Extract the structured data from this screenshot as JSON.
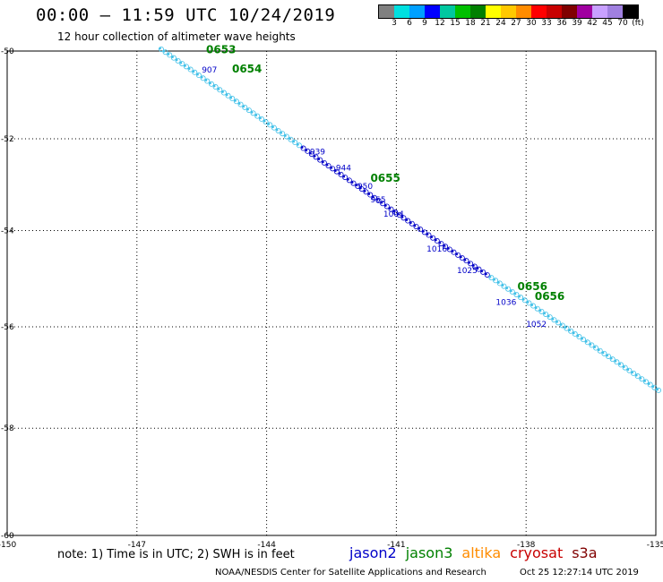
{
  "header": {
    "title": "00:00 – 11:59 UTC 10/24/2019",
    "subtitle": "12 hour collection of altimeter wave heights"
  },
  "colorbar": {
    "colors": [
      "#808080",
      "#00e0e0",
      "#00a0ff",
      "#0000ff",
      "#00c8a0",
      "#00c000",
      "#008000",
      "#ffff00",
      "#ffc800",
      "#ff8c00",
      "#ff0000",
      "#c80000",
      "#800000",
      "#a000a0",
      "#c8a0ff",
      "#a080e0",
      "#000000"
    ],
    "labels": [
      "3",
      "6",
      "9",
      "12",
      "15",
      "18",
      "21",
      "24",
      "27",
      "30",
      "33",
      "36",
      "39",
      "42",
      "45",
      "70",
      "(ft)"
    ]
  },
  "map": {
    "lon_range": [
      -150,
      -135
    ],
    "lat_range": [
      -60,
      -49.5
    ],
    "lon_ticks": [
      "-150",
      "-147",
      "-144",
      "-141",
      "-138",
      "-135"
    ],
    "lat_ticks": [
      "-50",
      "-52",
      "-54",
      "-56",
      "-58",
      "-60"
    ],
    "track_cyan_color": "#40c0e8",
    "track_blue_color": "#0000c8",
    "pass_label_color": "#008000",
    "pass_labels": [
      {
        "text": "0653",
        "lon": -145.4,
        "lat": -50.05
      },
      {
        "text": "0654",
        "lon": -144.8,
        "lat": -50.5
      },
      {
        "text": "0655",
        "lon": -141.6,
        "lat": -52.95
      },
      {
        "text": "0656",
        "lon": -138.2,
        "lat": -55.25
      },
      {
        "text": "0656",
        "lon": -137.8,
        "lat": -55.45
      }
    ],
    "time_labels": [
      {
        "text": "907",
        "lon": -145.5,
        "lat": -50.5
      },
      {
        "text": "939",
        "lon": -143.0,
        "lat": -52.35
      },
      {
        "text": "944",
        "lon": -142.4,
        "lat": -52.7
      },
      {
        "text": "950",
        "lon": -141.9,
        "lat": -53.1
      },
      {
        "text": "955",
        "lon": -141.6,
        "lat": -53.4
      },
      {
        "text": "1004",
        "lon": -141.3,
        "lat": -53.7
      },
      {
        "text": "1016",
        "lon": -140.3,
        "lat": -54.45
      },
      {
        "text": "1025",
        "lon": -139.6,
        "lat": -54.9
      },
      {
        "text": "1036",
        "lon": -138.7,
        "lat": -55.55
      },
      {
        "text": "1052",
        "lon": -138.0,
        "lat": -56.0
      }
    ]
  },
  "footer": {
    "note": "note: 1) Time is in UTC; 2) SWH is in feet",
    "missions": [
      {
        "name": "jason2",
        "color": "#0000c8"
      },
      {
        "name": "jason3",
        "color": "#008000"
      },
      {
        "name": "altika",
        "color": "#ff8c00"
      },
      {
        "name": "cryosat",
        "color": "#c80000"
      },
      {
        "name": "s3a",
        "color": "#800000"
      }
    ],
    "credit": "NOAA/NESDIS Center for Satellite Applications and Research",
    "timestamp": "Oct 25 12:27:14 UTC 2019"
  }
}
